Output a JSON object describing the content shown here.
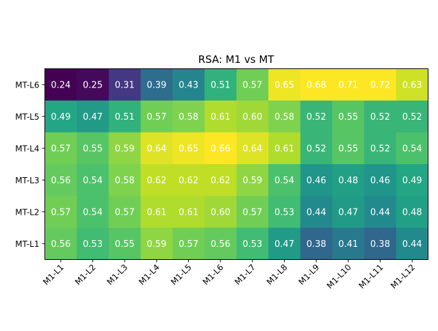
{
  "chart_data": {
    "type": "heatmap",
    "title": "RSA: M1 vs MT",
    "xlabel": "",
    "ylabel": "",
    "x_categories": [
      "M1-L1",
      "M1-L2",
      "M1-L3",
      "M1-L4",
      "M1-L5",
      "M1-L6",
      "M1-L7",
      "M1-L8",
      "M1-L9",
      "M1-L10",
      "M1-L11",
      "M1-L12"
    ],
    "y_categories_top_to_bottom": [
      "MT-L6",
      "MT-L5",
      "MT-L4",
      "MT-L3",
      "MT-L2",
      "MT-L1"
    ],
    "values": [
      [
        0.24,
        0.25,
        0.31,
        0.39,
        0.43,
        0.51,
        0.57,
        0.65,
        0.68,
        0.71,
        0.72,
        0.63
      ],
      [
        0.49,
        0.47,
        0.51,
        0.57,
        0.58,
        0.61,
        0.6,
        0.58,
        0.52,
        0.55,
        0.52,
        0.52
      ],
      [
        0.57,
        0.55,
        0.59,
        0.64,
        0.65,
        0.66,
        0.64,
        0.61,
        0.52,
        0.55,
        0.52,
        0.54
      ],
      [
        0.56,
        0.54,
        0.58,
        0.62,
        0.62,
        0.62,
        0.59,
        0.54,
        0.46,
        0.48,
        0.46,
        0.49
      ],
      [
        0.57,
        0.54,
        0.57,
        0.61,
        0.61,
        0.6,
        0.57,
        0.53,
        0.44,
        0.47,
        0.44,
        0.48
      ],
      [
        0.56,
        0.53,
        0.55,
        0.59,
        0.57,
        0.56,
        0.53,
        0.47,
        0.38,
        0.41,
        0.38,
        0.44
      ]
    ],
    "colormap": "viridis",
    "color_range": [
      0.24,
      0.66
    ],
    "cell_label_color": "#ffffff"
  }
}
